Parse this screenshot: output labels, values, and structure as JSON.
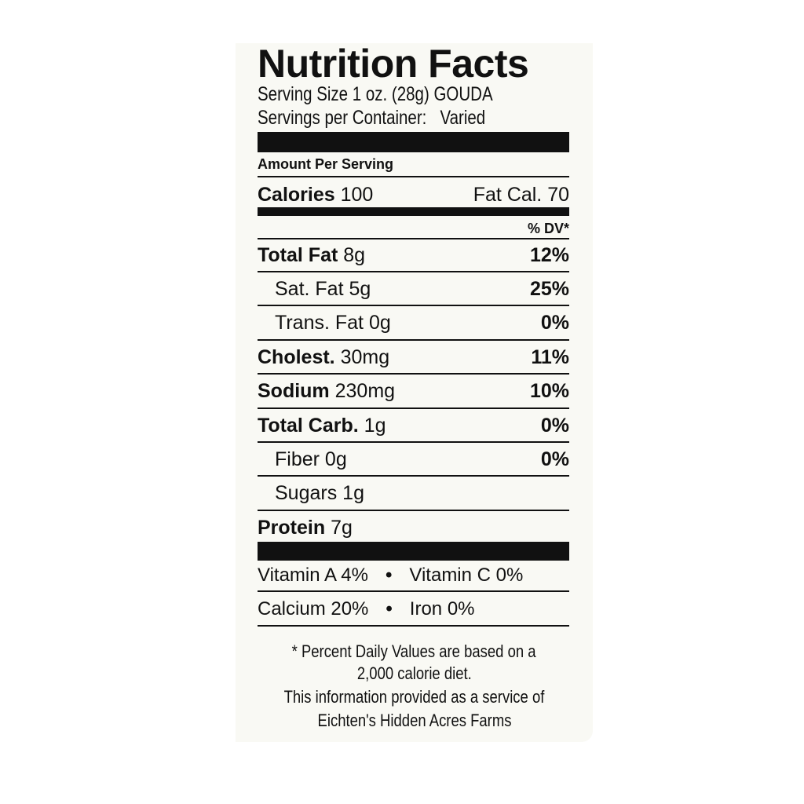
{
  "label": {
    "title": "Nutrition Facts",
    "serving_size": "Serving Size 1 oz. (28g) GOUDA",
    "servings_per_container_label": "Servings per Container:",
    "servings_per_container_value": "Varied",
    "amount_per_serving": "Amount Per Serving",
    "calories_label": "Calories",
    "calories_value": "100",
    "fat_cal": "Fat Cal. 70",
    "dv_header": "% DV*",
    "nutrients": [
      {
        "name": "Total Fat",
        "amount": "8g",
        "dv": "12%",
        "bold": true,
        "indent": false
      },
      {
        "name": "Sat. Fat",
        "amount": "5g",
        "dv": "25%",
        "bold": false,
        "indent": true
      },
      {
        "name": "Trans. Fat",
        "amount": "0g",
        "dv": "0%",
        "bold": false,
        "indent": true
      },
      {
        "name": "Cholest.",
        "amount": "30mg",
        "dv": "11%",
        "bold": true,
        "indent": false
      },
      {
        "name": "Sodium",
        "amount": "230mg",
        "dv": "10%",
        "bold": true,
        "indent": false
      },
      {
        "name": "Total Carb.",
        "amount": "1g",
        "dv": "0%",
        "bold": true,
        "indent": false
      },
      {
        "name": "Fiber",
        "amount": "0g",
        "dv": "0%",
        "bold": false,
        "indent": true
      },
      {
        "name": "Sugars",
        "amount": "1g",
        "dv": "",
        "bold": false,
        "indent": true
      },
      {
        "name": "Protein",
        "amount": "7g",
        "dv": "",
        "bold": true,
        "indent": false
      }
    ],
    "vitamins": [
      [
        "Vitamin A 4%",
        "Vitamin C 0%"
      ],
      [
        "Calcium 20%",
        "Iron 0%"
      ]
    ],
    "bullet": "•",
    "footnote": [
      "* Percent Daily Values are based on a",
      "2,000 calorie diet.",
      "This information provided as a service of",
      "Eichten's Hidden Acres Farms"
    ]
  }
}
